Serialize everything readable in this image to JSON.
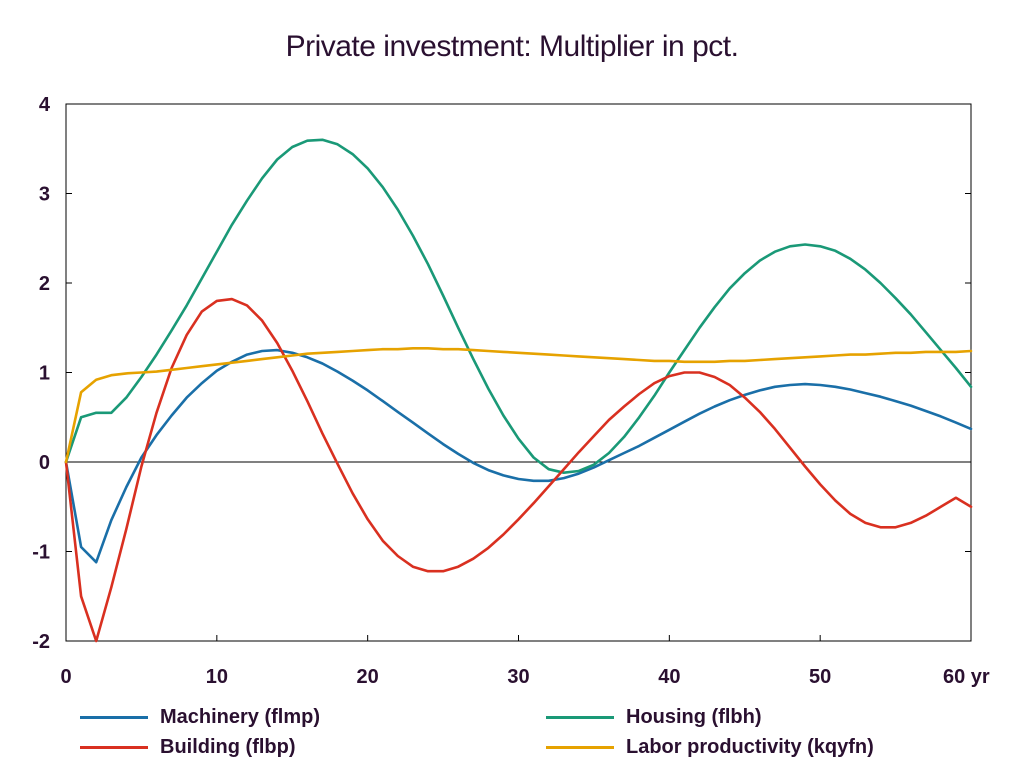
{
  "chart_data": {
    "type": "line",
    "title": "Private investment: Multiplier in pct.",
    "xlabel": "",
    "ylabel": "",
    "x_unit_label": "yr",
    "xlim": [
      0,
      60
    ],
    "ylim": [
      -2,
      4
    ],
    "x_ticks": [
      0,
      10,
      20,
      30,
      40,
      50,
      60
    ],
    "x_tick_labels": [
      "0",
      "10",
      "20",
      "30",
      "40",
      "50",
      "60 yr"
    ],
    "y_ticks": [
      -2,
      -1,
      0,
      1,
      2,
      3,
      4
    ],
    "y_tick_labels": [
      "-2",
      "-1",
      "0",
      "1",
      "2",
      "3",
      "4"
    ],
    "grid": false,
    "zero_line": true,
    "legend_position": "bottom",
    "x": [
      0,
      1,
      2,
      3,
      4,
      5,
      6,
      7,
      8,
      9,
      10,
      11,
      12,
      13,
      14,
      15,
      16,
      17,
      18,
      19,
      20,
      21,
      22,
      23,
      24,
      25,
      26,
      27,
      28,
      29,
      30,
      31,
      32,
      33,
      34,
      35,
      36,
      37,
      38,
      39,
      40,
      41,
      42,
      43,
      44,
      45,
      46,
      47,
      48,
      49,
      50,
      51,
      52,
      53,
      54,
      55,
      56,
      57,
      58,
      59,
      60
    ],
    "series": [
      {
        "name": "Machinery (flmp)",
        "color": "#1a6fa8",
        "values": [
          0,
          -0.95,
          -1.12,
          -0.65,
          -0.28,
          0.05,
          0.3,
          0.52,
          0.72,
          0.88,
          1.02,
          1.12,
          1.2,
          1.24,
          1.25,
          1.22,
          1.17,
          1.1,
          1.01,
          0.91,
          0.8,
          0.68,
          0.56,
          0.44,
          0.32,
          0.2,
          0.09,
          -0.01,
          -0.09,
          -0.15,
          -0.19,
          -0.21,
          -0.21,
          -0.18,
          -0.13,
          -0.06,
          0.02,
          0.1,
          0.18,
          0.27,
          0.36,
          0.45,
          0.54,
          0.62,
          0.69,
          0.75,
          0.8,
          0.84,
          0.86,
          0.87,
          0.86,
          0.84,
          0.81,
          0.77,
          0.73,
          0.68,
          0.63,
          0.57,
          0.51,
          0.44,
          0.37
        ]
      },
      {
        "name": "Housing (flbh)",
        "color": "#1a9977",
        "values": [
          0,
          0.5,
          0.55,
          0.55,
          0.72,
          0.95,
          1.2,
          1.47,
          1.75,
          2.05,
          2.35,
          2.65,
          2.92,
          3.17,
          3.38,
          3.52,
          3.59,
          3.6,
          3.55,
          3.44,
          3.28,
          3.07,
          2.82,
          2.53,
          2.21,
          1.86,
          1.5,
          1.15,
          0.82,
          0.52,
          0.26,
          0.05,
          -0.08,
          -0.12,
          -0.1,
          -0.03,
          0.1,
          0.28,
          0.5,
          0.74,
          1.0,
          1.25,
          1.5,
          1.73,
          1.94,
          2.11,
          2.25,
          2.35,
          2.41,
          2.43,
          2.41,
          2.36,
          2.27,
          2.15,
          2.0,
          1.83,
          1.65,
          1.45,
          1.25,
          1.05,
          0.84
        ]
      },
      {
        "name": "Building (flbp)",
        "color": "#d93020",
        "values": [
          0,
          -1.5,
          -2.0,
          -1.4,
          -0.75,
          -0.05,
          0.55,
          1.05,
          1.42,
          1.68,
          1.8,
          1.82,
          1.75,
          1.58,
          1.33,
          1.02,
          0.68,
          0.32,
          -0.02,
          -0.35,
          -0.64,
          -0.88,
          -1.05,
          -1.17,
          -1.22,
          -1.22,
          -1.17,
          -1.08,
          -0.96,
          -0.81,
          -0.64,
          -0.46,
          -0.27,
          -0.08,
          0.11,
          0.29,
          0.47,
          0.62,
          0.76,
          0.88,
          0.96,
          1.0,
          1.0,
          0.95,
          0.86,
          0.72,
          0.56,
          0.37,
          0.16,
          -0.05,
          -0.25,
          -0.43,
          -0.58,
          -0.68,
          -0.73,
          -0.73,
          -0.68,
          -0.6,
          -0.5,
          -0.4,
          -0.5
        ]
      },
      {
        "name": "Labor productivity (kqyfn)",
        "color": "#e6a200",
        "values": [
          0,
          0.78,
          0.92,
          0.97,
          0.99,
          1.0,
          1.01,
          1.03,
          1.05,
          1.07,
          1.09,
          1.11,
          1.13,
          1.15,
          1.17,
          1.19,
          1.21,
          1.22,
          1.23,
          1.24,
          1.25,
          1.26,
          1.26,
          1.27,
          1.27,
          1.26,
          1.26,
          1.25,
          1.24,
          1.23,
          1.22,
          1.21,
          1.2,
          1.19,
          1.18,
          1.17,
          1.16,
          1.15,
          1.14,
          1.13,
          1.13,
          1.12,
          1.12,
          1.12,
          1.13,
          1.13,
          1.14,
          1.15,
          1.16,
          1.17,
          1.18,
          1.19,
          1.2,
          1.2,
          1.21,
          1.22,
          1.22,
          1.23,
          1.23,
          1.23,
          1.24
        ]
      }
    ]
  },
  "legend": {
    "items": [
      {
        "label": "Machinery (flmp)",
        "color": "#1a6fa8"
      },
      {
        "label": "Housing (flbh)",
        "color": "#1a9977"
      },
      {
        "label": "Building (flbp)",
        "color": "#d93020"
      },
      {
        "label": "Labor productivity (kqyfn)",
        "color": "#e6a200"
      }
    ]
  }
}
